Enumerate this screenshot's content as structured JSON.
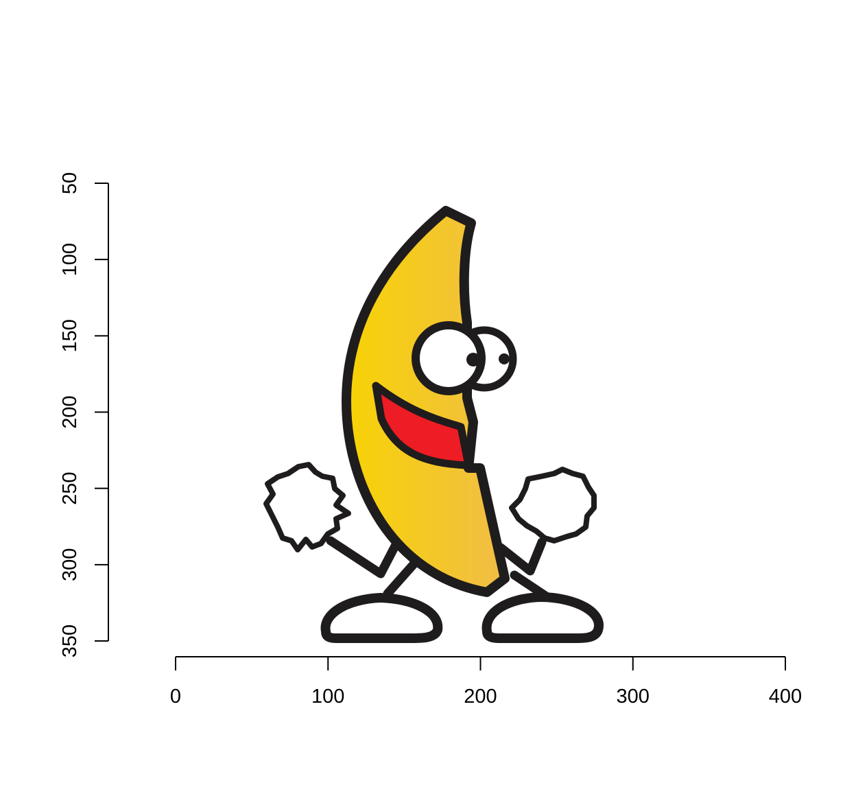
{
  "chart_data": {
    "type": "scatter",
    "title": "",
    "xlabel": "",
    "ylabel": "",
    "xlim": [
      0,
      400
    ],
    "ylim": [
      50,
      350
    ],
    "y_reversed": true,
    "x_ticks": [
      0,
      100,
      200,
      300,
      400
    ],
    "y_ticks": [
      50,
      100,
      150,
      200,
      250,
      300,
      350
    ],
    "x_tick_labels": [
      "0",
      "100",
      "200",
      "300",
      "400"
    ],
    "y_tick_labels": [
      "50",
      "100",
      "150",
      "200",
      "250",
      "300",
      "350"
    ],
    "grid": false,
    "legend": "none",
    "image_annotation": "dancing-banana-icon",
    "colors": {
      "banana_light": "#f7d305",
      "banana_dark": "#f1bd46",
      "outline": "#1f1c1d",
      "mouth": "#ee1c24",
      "eye_white": "#ffffff",
      "axis": "#000000"
    }
  }
}
